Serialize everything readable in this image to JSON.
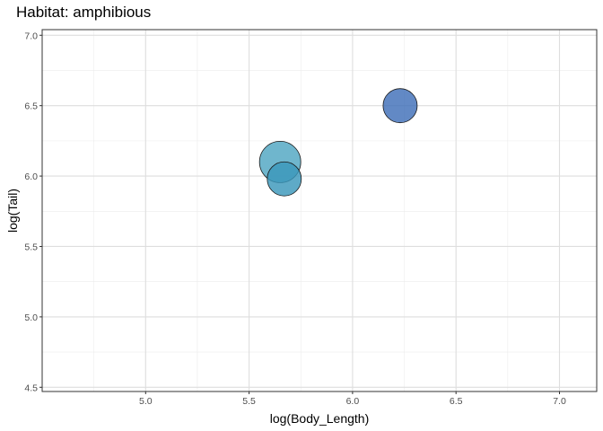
{
  "chart_data": {
    "type": "scatter",
    "title": "Habitat: amphibious",
    "xlabel": "log(Body_Length)",
    "ylabel": "log(Tail)",
    "xlim": [
      4.5,
      7.18
    ],
    "ylim": [
      4.47,
      7.04
    ],
    "xticks": [
      5.0,
      5.5,
      6.0,
      6.5,
      7.0
    ],
    "yticks": [
      4.5,
      5.0,
      5.5,
      6.0,
      6.5,
      7.0
    ],
    "xtick_labels": [
      "5.0",
      "5.5",
      "6.0",
      "6.5",
      "7.0"
    ],
    "ytick_labels": [
      "4.5",
      "5.0",
      "5.5",
      "6.0",
      "6.5",
      "7.0"
    ],
    "grid": true,
    "points": [
      {
        "x": 5.65,
        "y": 6.1,
        "color": "#4fa6c2",
        "size": "large"
      },
      {
        "x": 5.67,
        "y": 5.98,
        "color": "#3a97bb",
        "size": "medium"
      },
      {
        "x": 6.23,
        "y": 6.5,
        "color": "#3f6fb8",
        "size": "medium"
      }
    ]
  }
}
